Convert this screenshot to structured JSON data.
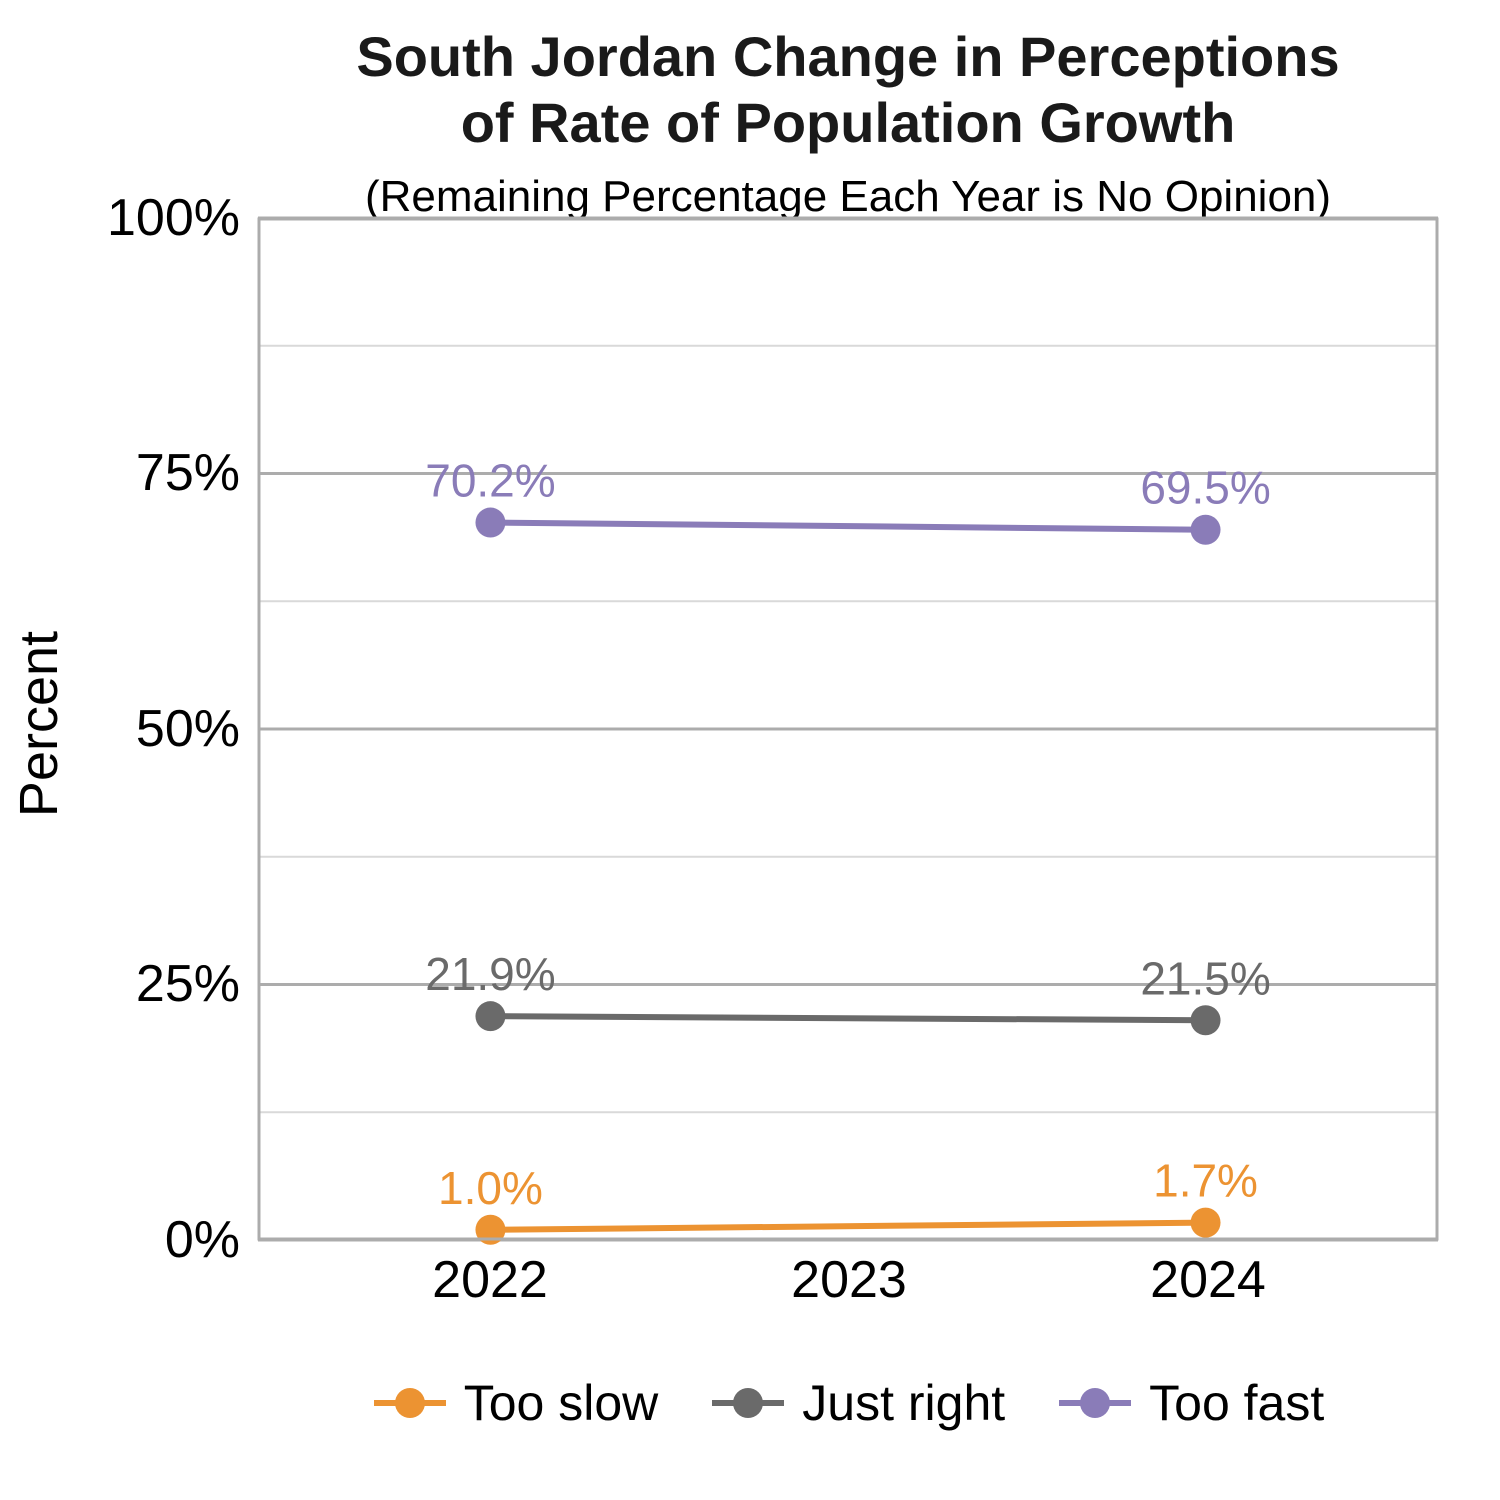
{
  "chart_data": {
    "type": "line",
    "title_lines": [
      "South Jordan Change in Perceptions",
      "of Rate of Population Growth"
    ],
    "subtitle": "(Remaining Percentage Each Year is No Opinion)",
    "ylabel": "Percent",
    "xlabel": "",
    "x_categories": [
      "2022",
      "2023",
      "2024"
    ],
    "ylim": [
      0,
      100
    ],
    "ytick_labels": [
      "0%",
      "25%",
      "50%",
      "75%",
      "100%"
    ],
    "gridlines": {
      "minor_step_percent": 12.5,
      "major_step_percent": 25
    },
    "legend_position": "bottom",
    "series": [
      {
        "name": "Too slow",
        "color": "#EC9332",
        "x": [
          "2022",
          "2024"
        ],
        "values": [
          1.0,
          1.7
        ],
        "labels": [
          "1.0%",
          "1.7%"
        ]
      },
      {
        "name": "Just right",
        "color": "#6A6A6A",
        "x": [
          "2022",
          "2024"
        ],
        "values": [
          21.9,
          21.5
        ],
        "labels": [
          "21.9%",
          "21.5%"
        ]
      },
      {
        "name": "Too fast",
        "color": "#8A7CB8",
        "x": [
          "2022",
          "2024"
        ],
        "values": [
          70.2,
          69.5
        ],
        "labels": [
          "70.2%",
          "69.5%"
        ]
      }
    ]
  }
}
